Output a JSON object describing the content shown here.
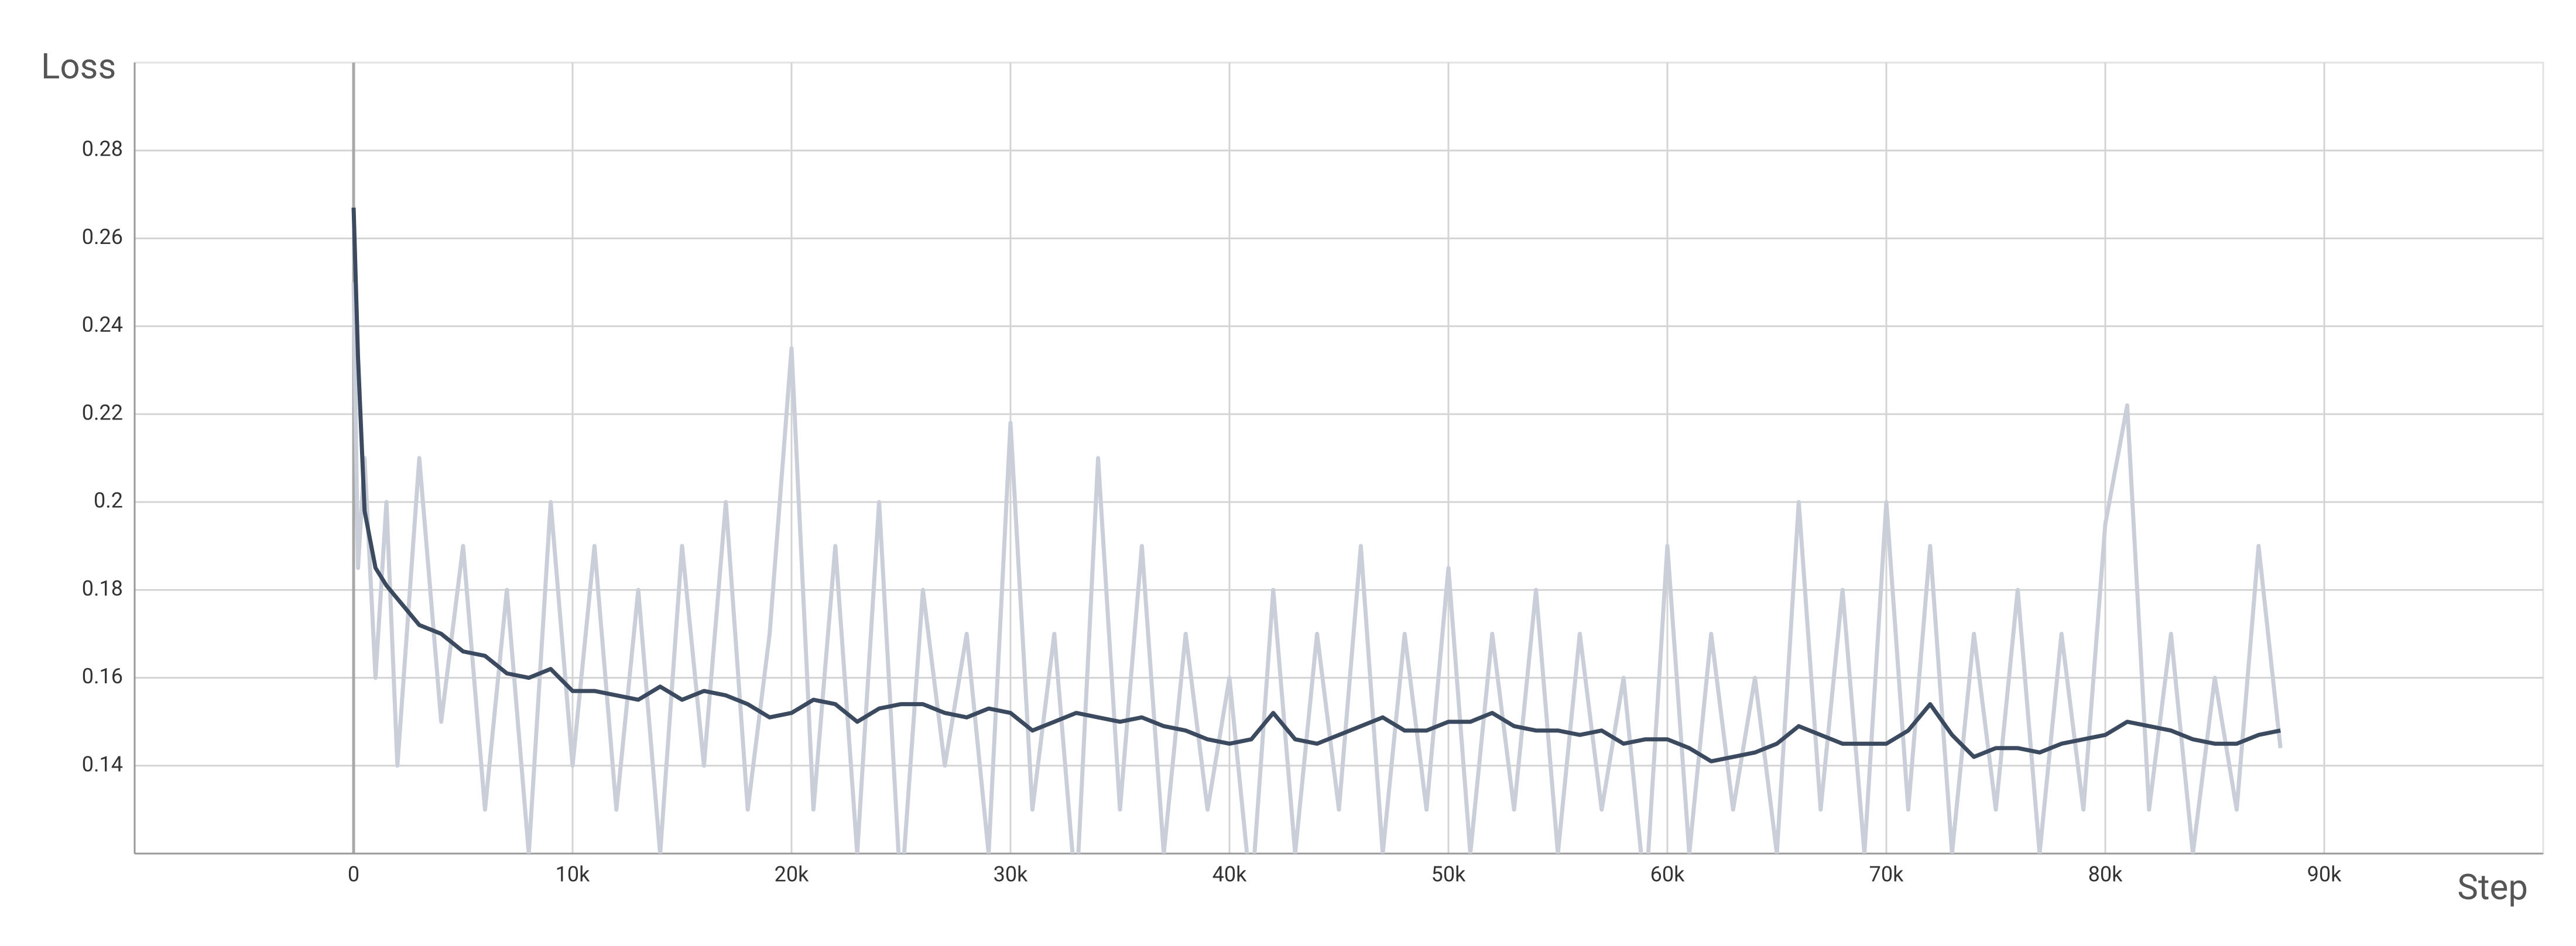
{
  "chart_data": {
    "type": "line",
    "ylabel": "Loss",
    "xlabel": "Step",
    "xlim": [
      -10000,
      100000
    ],
    "ylim": [
      0.12,
      0.3
    ],
    "xticks": [
      0,
      {
        "value": 10000,
        "label": "10k"
      },
      {
        "value": 20000,
        "label": "20k"
      },
      {
        "value": 30000,
        "label": "30k"
      },
      {
        "value": 40000,
        "label": "40k"
      },
      {
        "value": 50000,
        "label": "50k"
      },
      {
        "value": 60000,
        "label": "60k"
      },
      {
        "value": 70000,
        "label": "70k"
      },
      {
        "value": 80000,
        "label": "80k"
      },
      {
        "value": 90000,
        "label": "90k"
      }
    ],
    "yticks": [
      0.14,
      0.16,
      0.18,
      0.2,
      0.22,
      0.24,
      0.26,
      0.28
    ],
    "grid": true,
    "x": [
      0,
      200,
      500,
      1000,
      1500,
      2000,
      3000,
      4000,
      5000,
      6000,
      7000,
      8000,
      9000,
      10000,
      11000,
      12000,
      13000,
      14000,
      15000,
      16000,
      17000,
      18000,
      19000,
      20000,
      21000,
      22000,
      23000,
      24000,
      25000,
      26000,
      27000,
      28000,
      29000,
      30000,
      31000,
      32000,
      33000,
      34000,
      35000,
      36000,
      37000,
      38000,
      39000,
      40000,
      41000,
      42000,
      43000,
      44000,
      45000,
      46000,
      47000,
      48000,
      49000,
      50000,
      51000,
      52000,
      53000,
      54000,
      55000,
      56000,
      57000,
      58000,
      59000,
      60000,
      61000,
      62000,
      63000,
      64000,
      65000,
      66000,
      67000,
      68000,
      69000,
      70000,
      71000,
      72000,
      73000,
      74000,
      75000,
      76000,
      77000,
      78000,
      79000,
      80000,
      81000,
      82000,
      83000,
      84000,
      85000,
      86000,
      87000,
      88000
    ],
    "series": [
      {
        "color": "#c9ced9",
        "values": [
          0.25,
          0.185,
          0.21,
          0.16,
          0.2,
          0.14,
          0.21,
          0.15,
          0.19,
          0.13,
          0.18,
          0.12,
          0.2,
          0.14,
          0.19,
          0.13,
          0.18,
          0.12,
          0.19,
          0.14,
          0.2,
          0.13,
          0.17,
          0.235,
          0.13,
          0.19,
          0.12,
          0.2,
          0.11,
          0.18,
          0.14,
          0.17,
          0.12,
          0.218,
          0.13,
          0.17,
          0.11,
          0.21,
          0.13,
          0.19,
          0.12,
          0.17,
          0.13,
          0.16,
          0.11,
          0.18,
          0.12,
          0.17,
          0.13,
          0.19,
          0.12,
          0.17,
          0.13,
          0.185,
          0.12,
          0.17,
          0.13,
          0.18,
          0.12,
          0.17,
          0.13,
          0.16,
          0.11,
          0.19,
          0.12,
          0.17,
          0.13,
          0.16,
          0.12,
          0.2,
          0.13,
          0.18,
          0.12,
          0.2,
          0.13,
          0.19,
          0.12,
          0.17,
          0.13,
          0.18,
          0.12,
          0.17,
          0.13,
          0.195,
          0.222,
          0.13,
          0.17,
          0.12,
          0.16,
          0.13,
          0.19,
          0.144
        ]
      },
      {
        "color": "#3c4a60",
        "values": [
          0.267,
          0.233,
          0.198,
          0.185,
          0.181,
          0.178,
          0.172,
          0.17,
          0.166,
          0.165,
          0.161,
          0.16,
          0.162,
          0.157,
          0.157,
          0.156,
          0.155,
          0.158,
          0.155,
          0.157,
          0.156,
          0.154,
          0.151,
          0.152,
          0.155,
          0.154,
          0.15,
          0.153,
          0.154,
          0.154,
          0.152,
          0.151,
          0.153,
          0.152,
          0.148,
          0.15,
          0.152,
          0.151,
          0.15,
          0.151,
          0.149,
          0.148,
          0.146,
          0.145,
          0.146,
          0.152,
          0.146,
          0.145,
          0.147,
          0.149,
          0.151,
          0.148,
          0.148,
          0.15,
          0.15,
          0.152,
          0.149,
          0.148,
          0.148,
          0.147,
          0.148,
          0.145,
          0.146,
          0.146,
          0.144,
          0.141,
          0.142,
          0.143,
          0.145,
          0.149,
          0.147,
          0.145,
          0.145,
          0.145,
          0.148,
          0.154,
          0.147,
          0.142,
          0.144,
          0.144,
          0.143,
          0.145,
          0.146,
          0.147,
          0.15,
          0.149,
          0.148,
          0.146,
          0.145,
          0.145,
          0.147,
          0.148
        ]
      }
    ]
  }
}
